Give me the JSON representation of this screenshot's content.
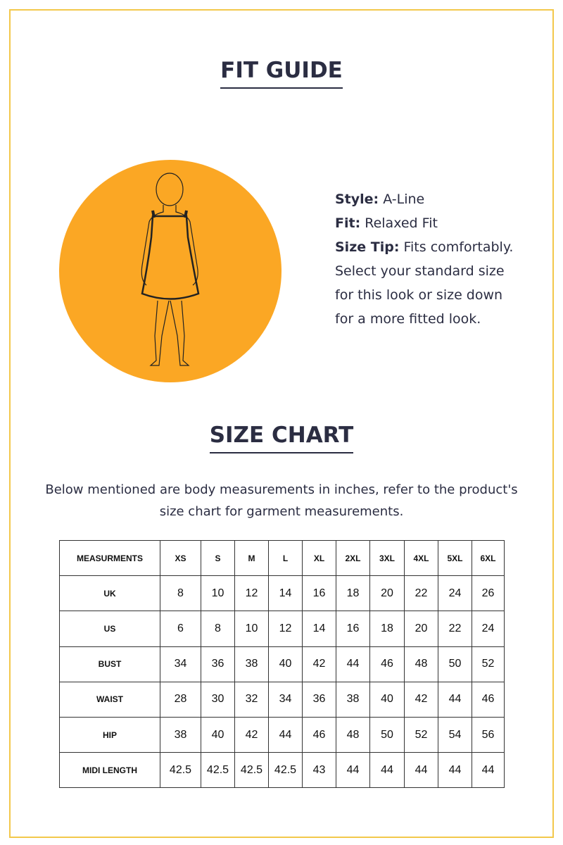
{
  "fit_guide": {
    "title": "FIT GUIDE",
    "style_label": "Style:",
    "style_value": "A-Line",
    "fit_label": "Fit:",
    "fit_value": "Relaxed Fit",
    "tip_label": "Size Tip:",
    "tip_value": "Fits comfortably. Select your standard size for this look or size down for a more fitted look.",
    "illustration": "a-line-dress-figure",
    "circle_color": "#fba724"
  },
  "size_chart": {
    "title": "SIZE CHART",
    "description": "Below mentioned are body measurements in inches, refer to the product's size chart for garment measurements.",
    "headers": [
      "MEASURMENTS",
      "XS",
      "S",
      "M",
      "L",
      "XL",
      "2XL",
      "3XL",
      "4XL",
      "5XL",
      "6XL"
    ],
    "rows": [
      {
        "label": "UK",
        "values": [
          "8",
          "10",
          "12",
          "14",
          "16",
          "18",
          "20",
          "22",
          "24",
          "26"
        ]
      },
      {
        "label": "US",
        "values": [
          "6",
          "8",
          "10",
          "12",
          "14",
          "16",
          "18",
          "20",
          "22",
          "24"
        ]
      },
      {
        "label": "BUST",
        "values": [
          "34",
          "36",
          "38",
          "40",
          "42",
          "44",
          "46",
          "48",
          "50",
          "52"
        ]
      },
      {
        "label": "WAIST",
        "values": [
          "28",
          "30",
          "32",
          "34",
          "36",
          "38",
          "40",
          "42",
          "44",
          "46"
        ]
      },
      {
        "label": "HIP",
        "values": [
          "38",
          "40",
          "42",
          "44",
          "46",
          "48",
          "50",
          "52",
          "54",
          "56"
        ]
      },
      {
        "label": "MIDI LENGTH",
        "values": [
          "42.5",
          "42.5",
          "42.5",
          "42.5",
          "43",
          "44",
          "44",
          "44",
          "44",
          "44"
        ]
      }
    ]
  }
}
